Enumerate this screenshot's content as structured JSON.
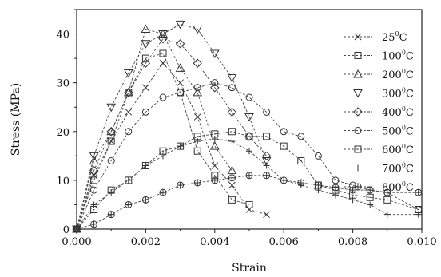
{
  "chart_data": {
    "type": "line",
    "title": "",
    "xlabel": "Strain",
    "ylabel": "Stress (MPa)",
    "xlim": [
      0,
      0.01
    ],
    "ylim": [
      0,
      45
    ],
    "x_ticks": [
      "0.000",
      "0.002",
      "0.004",
      "0.006",
      "0.008",
      "0.010"
    ],
    "y_ticks": [
      "0",
      "10",
      "20",
      "30",
      "40"
    ],
    "legend_position": "right",
    "grid": false,
    "series": [
      {
        "name": "25°C",
        "legend_main": "25",
        "legend_sup": "0",
        "legend_unit": "C",
        "marker": "x",
        "points": [
          [
            0,
            0
          ],
          [
            0.0005,
            11
          ],
          [
            0.001,
            18
          ],
          [
            0.0015,
            24
          ],
          [
            0.002,
            29
          ],
          [
            0.0025,
            34
          ],
          [
            0.003,
            30
          ],
          [
            0.0035,
            23
          ],
          [
            0.004,
            13
          ],
          [
            0.0045,
            9
          ],
          [
            0.005,
            4
          ],
          [
            0.0055,
            3
          ]
        ]
      },
      {
        "name": "100°C",
        "legend_main": "100",
        "legend_sup": "0",
        "legend_unit": "C",
        "marker": "square",
        "points": [
          [
            0,
            0
          ],
          [
            0.0005,
            10
          ],
          [
            0.001,
            18
          ],
          [
            0.0015,
            28
          ],
          [
            0.002,
            35
          ],
          [
            0.0025,
            36
          ],
          [
            0.003,
            28
          ],
          [
            0.0035,
            16
          ],
          [
            0.004,
            11
          ],
          [
            0.0045,
            6
          ],
          [
            0.005,
            5
          ]
        ]
      },
      {
        "name": "200°C",
        "legend_main": "200",
        "legend_sup": "0",
        "legend_unit": "C",
        "marker": "triangle-up",
        "points": [
          [
            0,
            0
          ],
          [
            0.0005,
            14
          ],
          [
            0.001,
            20
          ],
          [
            0.0015,
            28
          ],
          [
            0.002,
            41
          ],
          [
            0.0025,
            40
          ],
          [
            0.003,
            33
          ],
          [
            0.0035,
            28
          ],
          [
            0.004,
            17
          ],
          [
            0.0045,
            12
          ]
        ]
      },
      {
        "name": "300°C",
        "legend_main": "300",
        "legend_sup": "0",
        "legend_unit": "C",
        "marker": "triangle-down",
        "points": [
          [
            0,
            0
          ],
          [
            0.0005,
            15
          ],
          [
            0.001,
            25
          ],
          [
            0.0015,
            32
          ],
          [
            0.002,
            38
          ],
          [
            0.0025,
            40
          ],
          [
            0.003,
            42
          ],
          [
            0.0035,
            41
          ],
          [
            0.004,
            36
          ],
          [
            0.0045,
            31
          ],
          [
            0.005,
            23
          ],
          [
            0.0055,
            14
          ]
        ]
      },
      {
        "name": "400°C",
        "legend_main": "400",
        "legend_sup": "0",
        "legend_unit": "C",
        "marker": "diamond",
        "points": [
          [
            0,
            0
          ],
          [
            0.0005,
            12
          ],
          [
            0.001,
            20
          ],
          [
            0.0015,
            28
          ],
          [
            0.002,
            34
          ],
          [
            0.0025,
            39
          ],
          [
            0.003,
            38
          ],
          [
            0.0035,
            34
          ],
          [
            0.004,
            29
          ],
          [
            0.0045,
            24
          ],
          [
            0.005,
            19
          ],
          [
            0.0055,
            15
          ]
        ]
      },
      {
        "name": "500°C",
        "legend_main": "500",
        "legend_sup": "0",
        "legend_unit": "C",
        "marker": "circle",
        "points": [
          [
            0,
            0
          ],
          [
            0.0005,
            8
          ],
          [
            0.001,
            14
          ],
          [
            0.0015,
            20
          ],
          [
            0.002,
            24
          ],
          [
            0.0025,
            27
          ],
          [
            0.003,
            28
          ],
          [
            0.0035,
            29
          ],
          [
            0.004,
            30
          ],
          [
            0.0045,
            29
          ],
          [
            0.005,
            27
          ],
          [
            0.0055,
            24
          ],
          [
            0.006,
            20
          ],
          [
            0.0065,
            19
          ],
          [
            0.007,
            15
          ],
          [
            0.0075,
            10
          ],
          [
            0.008,
            9
          ],
          [
            0.0085,
            8
          ],
          [
            0.009,
            7.5
          ],
          [
            0.0099,
            4
          ]
        ]
      },
      {
        "name": "600°C",
        "legend_main": "600",
        "legend_sup": "0",
        "legend_unit": "C",
        "marker": "square-dot",
        "points": [
          [
            0,
            0
          ],
          [
            0.0005,
            4
          ],
          [
            0.001,
            8
          ],
          [
            0.0015,
            10
          ],
          [
            0.002,
            13
          ],
          [
            0.0025,
            16
          ],
          [
            0.003,
            17
          ],
          [
            0.0035,
            19
          ],
          [
            0.004,
            19.5
          ],
          [
            0.0045,
            20
          ],
          [
            0.005,
            19
          ],
          [
            0.0055,
            19
          ],
          [
            0.006,
            17
          ],
          [
            0.0065,
            14
          ],
          [
            0.007,
            9
          ],
          [
            0.0075,
            8
          ],
          [
            0.008,
            7
          ],
          [
            0.0085,
            6.5
          ],
          [
            0.009,
            6
          ],
          [
            0.0099,
            4
          ]
        ]
      },
      {
        "name": "700°C",
        "legend_main": "700",
        "legend_sup": "0",
        "legend_unit": "C",
        "marker": "plus",
        "points": [
          [
            0,
            0
          ],
          [
            0.0005,
            5
          ],
          [
            0.001,
            7.5
          ],
          [
            0.0015,
            10
          ],
          [
            0.002,
            13
          ],
          [
            0.0025,
            15
          ],
          [
            0.003,
            17
          ],
          [
            0.0035,
            18
          ],
          [
            0.004,
            18.5
          ],
          [
            0.0045,
            18
          ],
          [
            0.005,
            16
          ],
          [
            0.0055,
            13
          ],
          [
            0.006,
            10
          ],
          [
            0.0065,
            9
          ],
          [
            0.007,
            8
          ],
          [
            0.0075,
            7
          ],
          [
            0.008,
            6
          ],
          [
            0.0085,
            5
          ],
          [
            0.009,
            3
          ],
          [
            0.0099,
            3
          ]
        ]
      },
      {
        "name": "800°C",
        "legend_main": "800",
        "legend_sup": "0",
        "legend_unit": "C",
        "marker": "circle-plus",
        "points": [
          [
            0,
            0
          ],
          [
            0.0005,
            1
          ],
          [
            0.001,
            3
          ],
          [
            0.0015,
            5
          ],
          [
            0.002,
            6
          ],
          [
            0.0025,
            7.5
          ],
          [
            0.003,
            9
          ],
          [
            0.0035,
            9.5
          ],
          [
            0.004,
            10
          ],
          [
            0.0045,
            10.5
          ],
          [
            0.005,
            11
          ],
          [
            0.0055,
            11
          ],
          [
            0.006,
            10
          ],
          [
            0.0065,
            9.5
          ],
          [
            0.007,
            9
          ],
          [
            0.0075,
            8.5
          ],
          [
            0.008,
            8
          ],
          [
            0.0085,
            8
          ],
          [
            0.009,
            7.5
          ],
          [
            0.0099,
            7.5
          ]
        ]
      }
    ]
  }
}
